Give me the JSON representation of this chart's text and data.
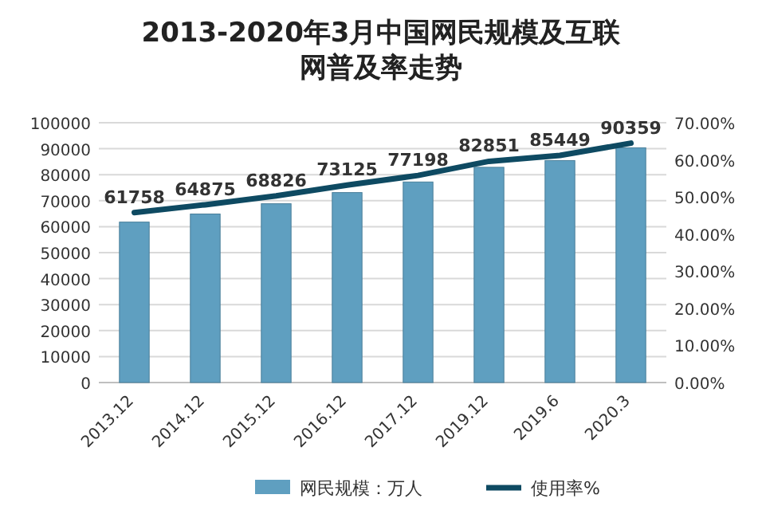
{
  "chart_data": {
    "type": "bar",
    "title": "2013-2020年3月中国网民规模及互联网普及率走势",
    "categories": [
      "2013.12",
      "2014.12",
      "2015.12",
      "2016.12",
      "2017.12",
      "2019.12",
      "2019.6",
      "2020.3"
    ],
    "series": [
      {
        "name": "网民规模：万人",
        "color": "#5f9fc0",
        "values": [
          61758,
          64875,
          68826,
          73125,
          77198,
          82851,
          85449,
          90359
        ],
        "value_labels": [
          "61758",
          "64875",
          "68826",
          "73125",
          "77198",
          "82851",
          "85449",
          "90359"
        ]
      },
      {
        "name": "使用率%",
        "type": "line",
        "axis": "y2",
        "color": "#0e4a62",
        "values": [
          45.8,
          47.9,
          50.3,
          53.2,
          55.8,
          59.6,
          61.2,
          64.5
        ]
      }
    ],
    "ylim": [
      0,
      100000
    ],
    "yticks": [
      0,
      10000,
      20000,
      30000,
      40000,
      50000,
      60000,
      70000,
      80000,
      90000,
      100000
    ],
    "y2lim": [
      0,
      70
    ],
    "y2ticks": [
      {
        "value": 0,
        "label": "0.00%"
      },
      {
        "value": 10,
        "label": "10.00%"
      },
      {
        "value": 20,
        "label": "20.00%"
      },
      {
        "value": 30,
        "label": "30.00%"
      },
      {
        "value": 40,
        "label": "40.00%"
      },
      {
        "value": 50,
        "label": "50.00%"
      },
      {
        "value": 60,
        "label": "60.00%"
      },
      {
        "value": 70,
        "label": "70.00%"
      }
    ],
    "grid": "y",
    "legend": "bottom",
    "marker": "none"
  }
}
